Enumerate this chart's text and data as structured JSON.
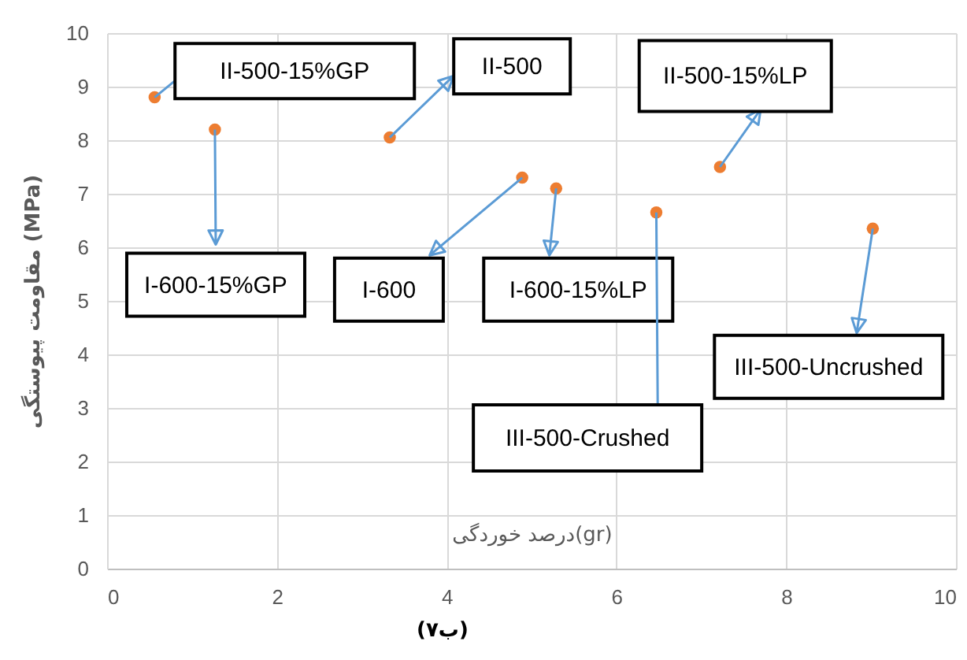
{
  "chart_data": {
    "type": "scatter",
    "xlabel": "درصد خوردگی(gr)",
    "ylabel": "مقاومت پیوستگی (MPa)",
    "series": [
      {
        "color": "#ed7d31",
        "x": [
          0.56,
          1.27,
          3.33,
          4.89,
          5.29,
          6.47,
          7.22,
          9.02
        ],
        "values": [
          8.8,
          8.2,
          8.05,
          7.3,
          7.1,
          6.65,
          7.5,
          6.35
        ]
      }
    ],
    "xlim": [
      0,
      10
    ],
    "xticks": [
      0,
      2,
      4,
      6,
      8,
      10
    ],
    "ylim": [
      0,
      10
    ],
    "yticks": [
      0,
      1,
      2,
      3,
      4,
      5,
      6,
      7,
      8,
      9,
      10
    ],
    "grid": true,
    "marker": "circle",
    "annotations": [
      {
        "text": "II-500-15%GP",
        "x": 0.56,
        "y": 8.8
      },
      {
        "text": "I-600-15%GP",
        "x": 1.27,
        "y": 8.2
      },
      {
        "text": "II-500",
        "x": 3.33,
        "y": 8.05
      },
      {
        "text": "I-600",
        "x": 4.89,
        "y": 7.3
      },
      {
        "text": "I-600-15%LP",
        "x": 5.29,
        "y": 7.1
      },
      {
        "text": "III-500-Crushed",
        "x": 6.47,
        "y": 6.65
      },
      {
        "text": "II-500-15%LP",
        "x": 7.22,
        "y": 7.5
      },
      {
        "text": "III-500-Uncrushed",
        "x": 9.02,
        "y": 6.35
      },
      "(ب۷)"
    ]
  }
}
